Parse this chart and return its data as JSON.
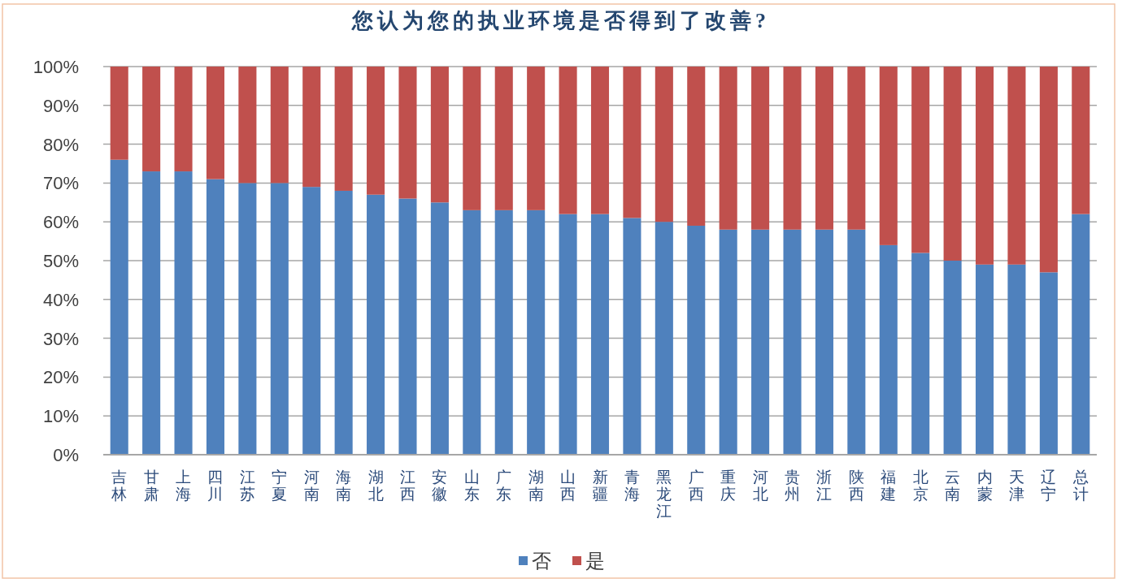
{
  "chart_data": {
    "type": "bar",
    "stacked": true,
    "title": "您认为您的执业环境是否得到了改善?",
    "categories": [
      "吉林",
      "甘肃",
      "上海",
      "四川",
      "江苏",
      "宁夏",
      "河南",
      "海南",
      "湖北",
      "江西",
      "安徽",
      "山东",
      "广东",
      "湖南",
      "山西",
      "新疆",
      "青海",
      "黑龙江",
      "广西",
      "重庆",
      "河北",
      "贵州",
      "浙江",
      "陕西",
      "福建",
      "北京",
      "云南",
      "内蒙",
      "天津",
      "辽宁",
      "总计"
    ],
    "series": [
      {
        "name": "否",
        "color": "#4f81bd",
        "values": [
          76,
          73,
          73,
          71,
          70,
          70,
          69,
          68,
          67,
          66,
          65,
          63,
          63,
          63,
          62,
          62,
          61,
          60,
          59,
          58,
          58,
          58,
          58,
          58,
          54,
          52,
          50,
          49,
          49,
          47,
          62
        ]
      },
      {
        "name": "是",
        "color": "#c0504d",
        "values": [
          24,
          27,
          27,
          29,
          30,
          30,
          31,
          32,
          33,
          34,
          35,
          37,
          37,
          37,
          38,
          38,
          39,
          40,
          41,
          42,
          42,
          42,
          42,
          42,
          46,
          48,
          50,
          51,
          51,
          53,
          38
        ]
      }
    ],
    "ylim": [
      0,
      100
    ],
    "yticks": [
      {
        "value": 0,
        "label": "0%"
      },
      {
        "value": 10,
        "label": "10%"
      },
      {
        "value": 20,
        "label": "20%"
      },
      {
        "value": 30,
        "label": "30%"
      },
      {
        "value": 40,
        "label": "40%"
      },
      {
        "value": 50,
        "label": "50%"
      },
      {
        "value": 60,
        "label": "60%"
      },
      {
        "value": 70,
        "label": "70%"
      },
      {
        "value": 80,
        "label": "80%"
      },
      {
        "value": 90,
        "label": "90%"
      },
      {
        "value": 100,
        "label": "100%"
      }
    ],
    "grid": "y",
    "legend": "bottom"
  }
}
